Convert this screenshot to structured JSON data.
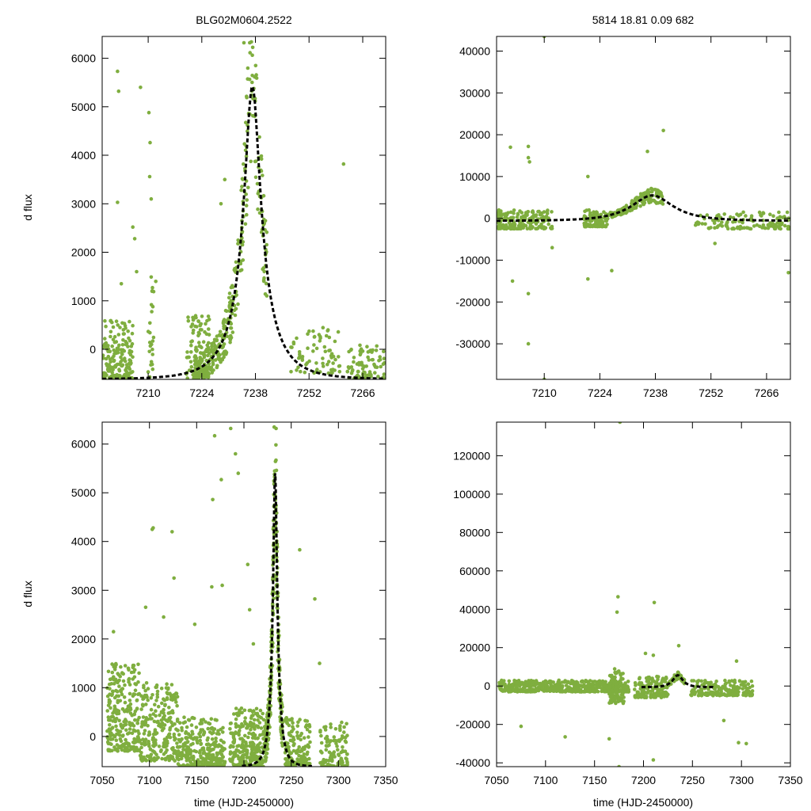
{
  "figure_title": "BLG02M0604.2522",
  "figure_info": "5814   18.81   0.09   682",
  "ylabel": "d flux",
  "xlabel": "time (HJD-2450000)",
  "point_color": "#7fae3f",
  "model_color": "#000000",
  "chart_data": [
    {
      "id": "top-left",
      "type": "scatter",
      "title": "BLG02M0604.2522",
      "xlabel": "",
      "ylabel": "d flux",
      "xlim": [
        7198,
        7272
      ],
      "ylim": [
        -620,
        6450
      ],
      "xticks": [
        7210,
        7224,
        7238,
        7252,
        7266
      ],
      "yticks": [
        0,
        1000,
        2000,
        3000,
        4000,
        5000,
        6000
      ],
      "seed": 11,
      "model": {
        "t0": 7237.2,
        "peak": 5420,
        "base": -620,
        "tE": 9.5,
        "u0": 0.22,
        "range": [
          7198,
          7272
        ]
      },
      "clusters": [
        {
          "x": [
            7198,
            7206
          ],
          "y": [
            -600,
            600
          ],
          "n": 170
        },
        {
          "x": [
            7210,
            7211.5
          ],
          "y": [
            -600,
            1600
          ],
          "n": 25
        },
        {
          "x": [
            7220,
            7226
          ],
          "y": [
            -600,
            700
          ],
          "n": 110
        },
        {
          "x": [
            7247,
            7260
          ],
          "y": [
            -500,
            500
          ],
          "n": 70
        },
        {
          "x": [
            7262,
            7272
          ],
          "y": [
            -600,
            100
          ],
          "n": 80
        }
      ],
      "follow_model": [
        {
          "x": [
            7222,
            7241
          ],
          "n": 320,
          "spread": 0.22
        }
      ],
      "outliers": [
        [
          7202,
          5730
        ],
        [
          7202.3,
          5320
        ],
        [
          7202,
          3030
        ],
        [
          7206,
          2520
        ],
        [
          7207,
          1600
        ],
        [
          7208,
          5400
        ],
        [
          7210.2,
          4880
        ],
        [
          7210.5,
          4260
        ],
        [
          7210.4,
          3560
        ],
        [
          7210.8,
          3100
        ],
        [
          7206.5,
          2280
        ],
        [
          7203,
          1350
        ],
        [
          7212,
          1400
        ],
        [
          7261,
          3820
        ],
        [
          7235,
          6320
        ],
        [
          7236.5,
          6320
        ],
        [
          7230,
          3500
        ],
        [
          7229,
          3000
        ]
      ]
    },
    {
      "id": "top-right",
      "type": "scatter",
      "title": "5814   18.81   0.09   682",
      "xlabel": "",
      "ylabel": "",
      "xlim": [
        7198,
        7272
      ],
      "ylim": [
        -38500,
        43500
      ],
      "xticks": [
        7210,
        7224,
        7238,
        7252,
        7266
      ],
      "yticks": [
        -30000,
        -20000,
        -10000,
        0,
        10000,
        20000,
        30000,
        40000
      ],
      "seed": 23,
      "model": {
        "t0": 7237.2,
        "peak": 5500,
        "base": -600,
        "tE": 9.5,
        "u0": 0.6,
        "range": [
          7198,
          7272
        ]
      },
      "clusters": [
        {
          "x": [
            7198,
            7212
          ],
          "y": [
            -2500,
            2000
          ],
          "n": 180
        },
        {
          "x": [
            7220,
            7226
          ],
          "y": [
            -2000,
            2000
          ],
          "n": 90
        },
        {
          "x": [
            7248,
            7272
          ],
          "y": [
            -2500,
            1500
          ],
          "n": 120
        }
      ],
      "follow_model": [
        {
          "x": [
            7226,
            7240
          ],
          "n": 160,
          "spread": 0.25
        }
      ],
      "outliers": [
        [
          7201.5,
          17000
        ],
        [
          7206,
          17200
        ],
        [
          7206,
          14500
        ],
        [
          7206.3,
          13500
        ],
        [
          7210,
          43500
        ],
        [
          7212,
          -7000
        ],
        [
          7202,
          -15000
        ],
        [
          7206,
          -18000
        ],
        [
          7206,
          -30000
        ],
        [
          7210,
          -38500
        ],
        [
          7221,
          10000
        ],
        [
          7221,
          -14500
        ],
        [
          7227,
          -12500
        ],
        [
          7236,
          16000
        ],
        [
          7240,
          21000
        ],
        [
          7253,
          -6000
        ],
        [
          7271.5,
          -13000
        ]
      ]
    },
    {
      "id": "bottom-left",
      "type": "scatter",
      "title": "",
      "xlabel": "time (HJD-2450000)",
      "ylabel": "d flux",
      "xlim": [
        7050,
        7350
      ],
      "ylim": [
        -620,
        6450
      ],
      "xticks": [
        7050,
        7100,
        7150,
        7200,
        7250,
        7300,
        7350
      ],
      "yticks": [
        0,
        1000,
        2000,
        3000,
        4000,
        5000,
        6000
      ],
      "seed": 37,
      "model": {
        "t0": 7233,
        "peak": 5400,
        "base": -620,
        "tE": 9.5,
        "u0": 0.22,
        "range": [
          7198,
          7272
        ]
      },
      "clusters": [
        {
          "x": [
            7055,
            7090
          ],
          "y": [
            -300,
            1500
          ],
          "n": 260
        },
        {
          "x": [
            7090,
            7130
          ],
          "y": [
            -500,
            1100
          ],
          "n": 240
        },
        {
          "x": [
            7130,
            7180
          ],
          "y": [
            -620,
            400
          ],
          "n": 300
        },
        {
          "x": [
            7185,
            7222
          ],
          "y": [
            -620,
            600
          ],
          "n": 280
        },
        {
          "x": [
            7243,
            7270
          ],
          "y": [
            -600,
            400
          ],
          "n": 150
        },
        {
          "x": [
            7280,
            7310
          ],
          "y": [
            -620,
            300
          ],
          "n": 110
        }
      ],
      "follow_model": [
        {
          "x": [
            7222,
            7241
          ],
          "n": 320,
          "spread": 0.22
        }
      ],
      "outliers": [
        [
          7062,
          2150
        ],
        [
          7096,
          2650
        ],
        [
          7104,
          4280
        ],
        [
          7103,
          4250
        ],
        [
          7115,
          2450
        ],
        [
          7124,
          4200
        ],
        [
          7126,
          3250
        ],
        [
          7148,
          2300
        ],
        [
          7169,
          6170
        ],
        [
          7167,
          4860
        ],
        [
          7166,
          3070
        ],
        [
          7176,
          5270
        ],
        [
          7177,
          3100
        ],
        [
          7186,
          6320
        ],
        [
          7191,
          5800
        ],
        [
          7194,
          5400
        ],
        [
          7204,
          3530
        ],
        [
          7206,
          2600
        ],
        [
          7210,
          1900
        ],
        [
          7259,
          3830
        ],
        [
          7275,
          2820
        ],
        [
          7280,
          1500
        ],
        [
          7232,
          6350
        ],
        [
          7234,
          6320
        ]
      ]
    },
    {
      "id": "bottom-right",
      "type": "scatter",
      "title": "",
      "xlabel": "time (HJD-2450000)",
      "ylabel": "",
      "xlim": [
        7050,
        7350
      ],
      "ylim": [
        -42000,
        137500
      ],
      "xticks": [
        7050,
        7100,
        7150,
        7200,
        7250,
        7300,
        7350
      ],
      "yticks": [
        -40000,
        -20000,
        0,
        20000,
        40000,
        60000,
        80000,
        100000,
        120000
      ],
      "seed": 53,
      "model": {
        "t0": 7235,
        "peak": 5600,
        "base": -600,
        "tE": 9.5,
        "u0": 0.6,
        "range": [
          7198,
          7272
        ]
      },
      "clusters": [
        {
          "x": [
            7052,
            7185
          ],
          "y": [
            -3000,
            3000
          ],
          "n": 520
        },
        {
          "x": [
            7165,
            7180
          ],
          "y": [
            -9000,
            9000
          ],
          "n": 90
        },
        {
          "x": [
            7190,
            7225
          ],
          "y": [
            -6000,
            5000
          ],
          "n": 140
        },
        {
          "x": [
            7248,
            7312
          ],
          "y": [
            -5000,
            3000
          ],
          "n": 190
        }
      ],
      "follow_model": [
        {
          "x": [
            7225,
            7242
          ],
          "n": 80,
          "spread": 0.3
        }
      ],
      "outliers": [
        [
          7176,
          137500
        ],
        [
          7174,
          46500
        ],
        [
          7173,
          38500
        ],
        [
          7211,
          43500
        ],
        [
          7236,
          21000
        ],
        [
          7202,
          17000
        ],
        [
          7210,
          16000
        ],
        [
          7120,
          -26500
        ],
        [
          7075,
          -21000
        ],
        [
          7165,
          -27500
        ],
        [
          7210,
          -38500
        ],
        [
          7175,
          -42000
        ],
        [
          7297,
          -29500
        ],
        [
          7305,
          -30000
        ],
        [
          7282,
          -18000
        ],
        [
          7295,
          13000
        ]
      ]
    }
  ]
}
